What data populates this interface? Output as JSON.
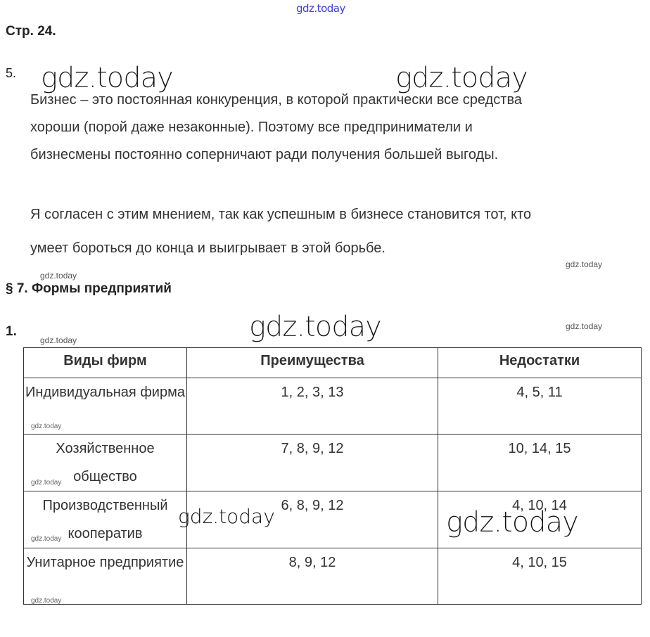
{
  "watermark": "gdz.today",
  "page_ref": "Стр. 24.",
  "task5": {
    "number": "5.",
    "p1": [
      "Бизнес – это постоянная конкуренция, в которой практически все средства",
      "хороши (порой даже незаконные). Поэтому все предприниматели и",
      "бизнесмены постоянно соперничают ради получения большей выгоды."
    ],
    "p2": [
      "Я согласен с этим мнением, так как успешным в бизнесе становится тот, кто",
      "умеет бороться до конца и выигрывает в этой борьбе."
    ]
  },
  "section": "§ 7. Формы предприятий",
  "task1": {
    "number": "1."
  },
  "table": {
    "headers": [
      "Виды фирм",
      "Преимущества",
      "Недостатки"
    ],
    "rows": [
      [
        "Индивидуальная фирма",
        "1, 2, 3, 13",
        "4, 5, 11"
      ],
      [
        "Хозяйственное общество",
        "7, 8, 9, 12",
        "10, 14, 15"
      ],
      [
        "Производственный кооператив",
        "6, 8, 9, 12",
        "4, 10, 14"
      ],
      [
        "Унитарное предприятие",
        "8, 9, 12",
        "4, 10, 15"
      ]
    ]
  }
}
